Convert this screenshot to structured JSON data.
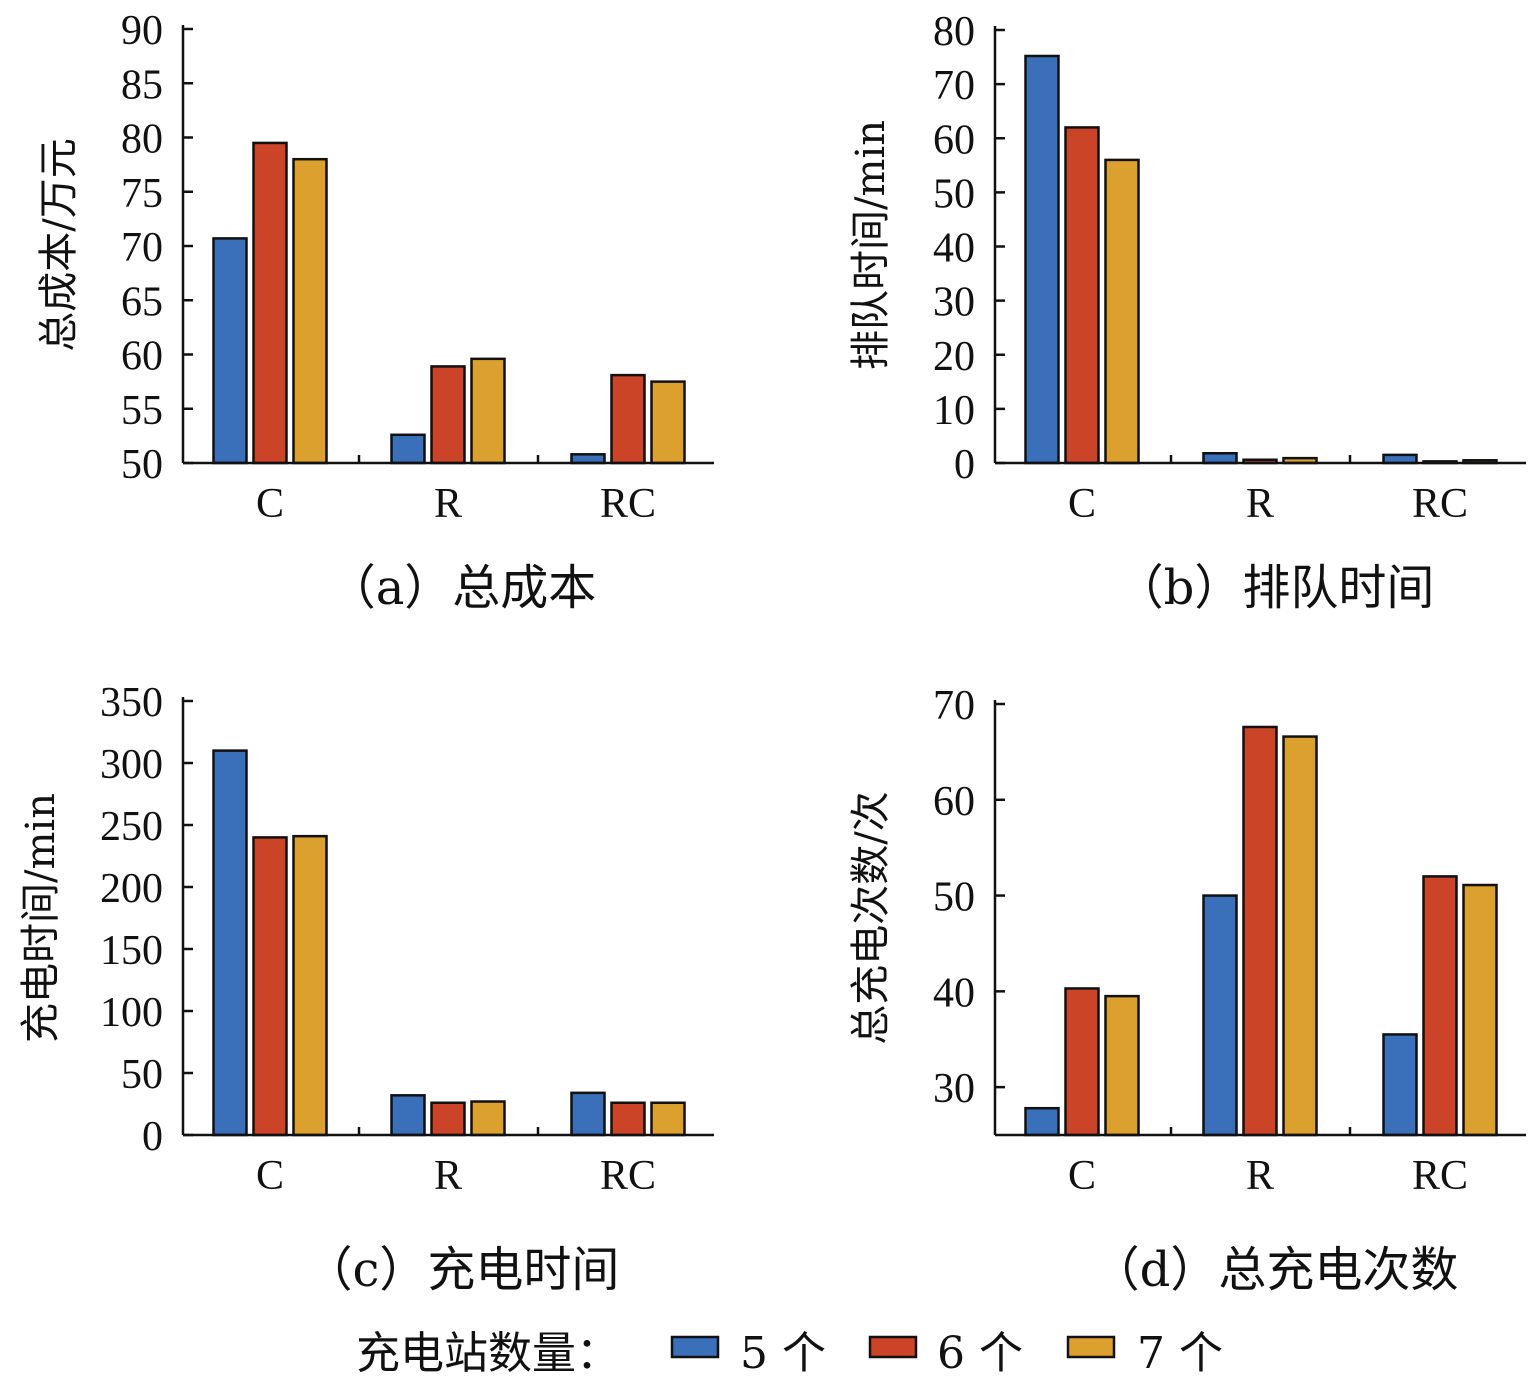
{
  "chart_data": [
    {
      "type": "bar",
      "caption": "（a）总成本",
      "ylabel": "总成本/万元",
      "categories": [
        "C",
        "R",
        "RC"
      ],
      "ylim": [
        50,
        90
      ],
      "yticks": [
        50,
        55,
        60,
        65,
        70,
        75,
        80,
        85,
        90
      ],
      "series": [
        {
          "name": "5 个",
          "values": [
            70.7,
            52.6,
            50.8
          ]
        },
        {
          "name": "6 个",
          "values": [
            79.5,
            58.9,
            58.1
          ]
        },
        {
          "name": "7 个",
          "values": [
            78.0,
            59.6,
            57.5
          ]
        }
      ]
    },
    {
      "type": "bar",
      "caption": "（b）排队时间",
      "ylabel": "排队时间/min",
      "categories": [
        "C",
        "R",
        "RC"
      ],
      "ylim": [
        0,
        80
      ],
      "yticks": [
        0,
        10,
        20,
        30,
        40,
        50,
        60,
        70,
        80
      ],
      "series": [
        {
          "name": "5 个",
          "values": [
            75.2,
            1.8,
            1.5
          ]
        },
        {
          "name": "6 个",
          "values": [
            62.0,
            0.6,
            0.3
          ]
        },
        {
          "name": "7 个",
          "values": [
            56.0,
            0.9,
            0.5
          ]
        }
      ]
    },
    {
      "type": "bar",
      "caption": "（c）充电时间",
      "ylabel": "充电时间/min",
      "categories": [
        "C",
        "R",
        "RC"
      ],
      "ylim": [
        0,
        350
      ],
      "yticks": [
        0,
        50,
        100,
        150,
        200,
        250,
        300,
        350
      ],
      "series": [
        {
          "name": "5 个",
          "values": [
            310,
            32,
            34
          ]
        },
        {
          "name": "6 个",
          "values": [
            240,
            26,
            26
          ]
        },
        {
          "name": "7 个",
          "values": [
            241,
            27,
            26
          ]
        }
      ]
    },
    {
      "type": "bar",
      "caption": "（d）总充电次数",
      "ylabel": "总充电次数/次",
      "categories": [
        "C",
        "R",
        "RC"
      ],
      "ylim": [
        25,
        70
      ],
      "yticks": [
        30,
        40,
        50,
        60,
        70
      ],
      "series": [
        {
          "name": "5 个",
          "values": [
            27.8,
            50.0,
            35.5
          ]
        },
        {
          "name": "6 个",
          "values": [
            40.3,
            67.6,
            52.0
          ]
        },
        {
          "name": "7 个",
          "values": [
            39.5,
            66.6,
            51.1
          ]
        }
      ]
    }
  ],
  "legend": {
    "title": "充电站数量：",
    "items": [
      {
        "label": "5 个",
        "color": "#3a6fba"
      },
      {
        "label": "6 个",
        "color": "#cc4428"
      },
      {
        "label": "7 个",
        "color": "#dba02e"
      }
    ]
  }
}
